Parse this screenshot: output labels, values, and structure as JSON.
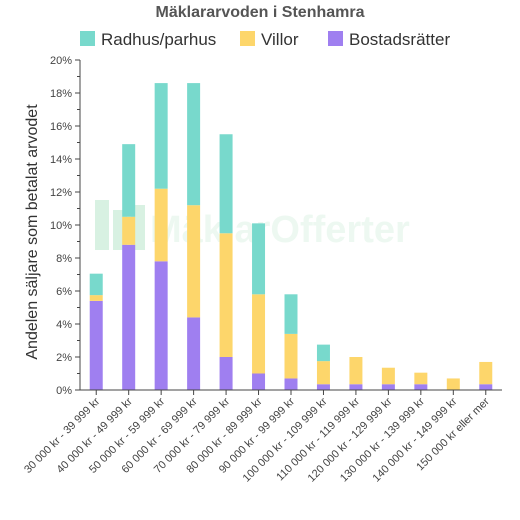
{
  "chart_data": {
    "type": "bar",
    "stacked": true,
    "title": "Mäklararvoden i Stenhamra",
    "xlabel": "",
    "ylabel": "Andelen säljare som betalat arvodet",
    "ylim": [
      0,
      20
    ],
    "y_tick_step": 2,
    "y_tick_format": "percent",
    "grid": false,
    "legend_position": "top",
    "watermark": "MäklarOfferter",
    "categories": [
      "30 000 kr - 39 999 kr",
      "40 000 kr - 49 999 kr",
      "50 000 kr - 59 999 kr",
      "60 000 kr - 69 999 kr",
      "70 000 kr - 79 999 kr",
      "80 000 kr - 89 999 kr",
      "90 000 kr - 99 999 kr",
      "100 000 kr - 109 999 kr",
      "110 000 kr - 119 999 kr",
      "120 000 kr - 129 999 kr",
      "130 000 kr - 139 999 kr",
      "140 000 kr - 149 999 kr",
      "150 000 kr eller mer"
    ],
    "series": [
      {
        "name": "Bostadsrätter",
        "color": "#9f7ff0",
        "values": [
          5.4,
          8.8,
          7.8,
          4.4,
          2.0,
          1.0,
          0.7,
          0.35,
          0.35,
          0.35,
          0.35,
          0.0,
          0.35
        ]
      },
      {
        "name": "Villor",
        "color": "#fdd66b",
        "values": [
          0.35,
          1.7,
          4.4,
          6.8,
          7.5,
          4.8,
          2.7,
          1.4,
          1.65,
          1.0,
          0.7,
          0.7,
          1.35
        ]
      },
      {
        "name": "Radhus/parhus",
        "color": "#78d9cc",
        "values": [
          1.3,
          4.4,
          6.4,
          7.4,
          6.0,
          4.3,
          2.4,
          1.0,
          0.0,
          0.0,
          0.0,
          0.0,
          0.0
        ]
      }
    ],
    "legend_order": [
      "Radhus/parhus",
      "Villor",
      "Bostadsrätter"
    ]
  }
}
